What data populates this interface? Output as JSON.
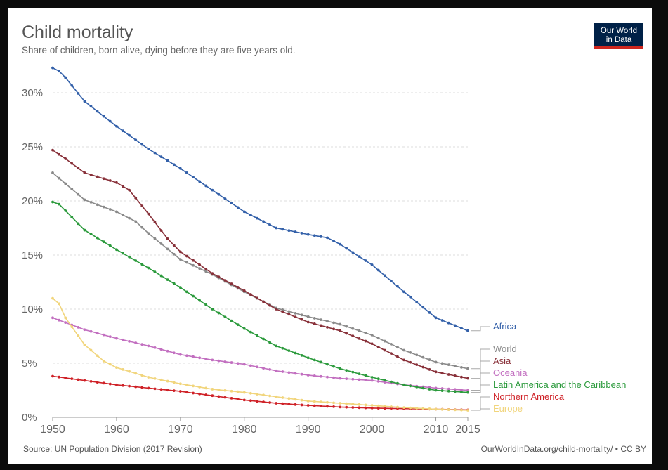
{
  "header": {
    "title": "Child mortality",
    "subtitle": "Share of children, born alive, dying before they are five years old."
  },
  "logo": {
    "line1": "Our World",
    "line2": "in Data",
    "bg_color": "#002147",
    "accent_color": "#ce261e"
  },
  "footer": {
    "source": "Source: UN Population Division (2017 Revision)",
    "url": "OurWorldInData.org/child-mortality/",
    "license": "CC BY"
  },
  "chart_data": {
    "type": "line",
    "xlim": [
      1950,
      2015
    ],
    "ylim": [
      0,
      32
    ],
    "x_ticks": [
      1950,
      1960,
      1970,
      1980,
      1990,
      2000,
      2010,
      2015
    ],
    "x_tick_labels": [
      "1950",
      "1960",
      "1970",
      "1980",
      "1990",
      "2000",
      "2010",
      "2015"
    ],
    "y_ticks": [
      0,
      5,
      10,
      15,
      20,
      25,
      30
    ],
    "y_tick_labels": [
      "0%",
      "5%",
      "10%",
      "15%",
      "20%",
      "25%",
      "30%"
    ],
    "grid": "horizontal-dashed",
    "legend": "end-labels-right",
    "series": [
      {
        "name": "Africa",
        "color": "#3360a9",
        "points": [
          [
            1950,
            32.3
          ],
          [
            1951,
            32.0
          ],
          [
            1952,
            31.4
          ],
          [
            1955,
            29.2
          ],
          [
            1960,
            26.9
          ],
          [
            1965,
            24.8
          ],
          [
            1970,
            23.0
          ],
          [
            1975,
            21.0
          ],
          [
            1980,
            19.0
          ],
          [
            1985,
            17.5
          ],
          [
            1990,
            16.9
          ],
          [
            1993,
            16.6
          ],
          [
            1995,
            16.0
          ],
          [
            2000,
            14.1
          ],
          [
            2005,
            11.6
          ],
          [
            2010,
            9.2
          ],
          [
            2015,
            8.0
          ]
        ]
      },
      {
        "name": "World",
        "color": "#8a8a8a",
        "points": [
          [
            1950,
            22.6
          ],
          [
            1952,
            21.6
          ],
          [
            1955,
            20.1
          ],
          [
            1960,
            19.0
          ],
          [
            1963,
            18.1
          ],
          [
            1965,
            17.0
          ],
          [
            1970,
            14.6
          ],
          [
            1975,
            13.2
          ],
          [
            1980,
            11.6
          ],
          [
            1985,
            10.1
          ],
          [
            1990,
            9.3
          ],
          [
            1995,
            8.6
          ],
          [
            2000,
            7.6
          ],
          [
            2005,
            6.2
          ],
          [
            2010,
            5.1
          ],
          [
            2015,
            4.5
          ]
        ]
      },
      {
        "name": "Asia",
        "color": "#883039",
        "points": [
          [
            1950,
            24.7
          ],
          [
            1952,
            23.9
          ],
          [
            1955,
            22.6
          ],
          [
            1960,
            21.7
          ],
          [
            1962,
            21.0
          ],
          [
            1965,
            18.8
          ],
          [
            1968,
            16.5
          ],
          [
            1970,
            15.3
          ],
          [
            1975,
            13.3
          ],
          [
            1980,
            11.7
          ],
          [
            1985,
            10.0
          ],
          [
            1990,
            8.8
          ],
          [
            1995,
            8.0
          ],
          [
            2000,
            6.8
          ],
          [
            2005,
            5.3
          ],
          [
            2010,
            4.2
          ],
          [
            2015,
            3.6
          ]
        ]
      },
      {
        "name": "Oceania",
        "color": "#c26fc0",
        "points": [
          [
            1950,
            9.2
          ],
          [
            1955,
            8.1
          ],
          [
            1960,
            7.3
          ],
          [
            1965,
            6.6
          ],
          [
            1970,
            5.8
          ],
          [
            1975,
            5.3
          ],
          [
            1980,
            4.9
          ],
          [
            1985,
            4.3
          ],
          [
            1990,
            3.9
          ],
          [
            1995,
            3.6
          ],
          [
            2000,
            3.4
          ],
          [
            2005,
            3.0
          ],
          [
            2010,
            2.7
          ],
          [
            2015,
            2.5
          ]
        ]
      },
      {
        "name": "Latin America and the Caribbean",
        "color": "#2b9a3c",
        "points": [
          [
            1950,
            19.9
          ],
          [
            1951,
            19.7
          ],
          [
            1955,
            17.3
          ],
          [
            1960,
            15.5
          ],
          [
            1965,
            13.8
          ],
          [
            1970,
            12.0
          ],
          [
            1975,
            10.0
          ],
          [
            1980,
            8.2
          ],
          [
            1985,
            6.6
          ],
          [
            1990,
            5.5
          ],
          [
            1995,
            4.5
          ],
          [
            2000,
            3.7
          ],
          [
            2005,
            3.0
          ],
          [
            2010,
            2.5
          ],
          [
            2015,
            2.3
          ]
        ]
      },
      {
        "name": "Northern America",
        "color": "#cf2127",
        "points": [
          [
            1950,
            3.8
          ],
          [
            1955,
            3.4
          ],
          [
            1960,
            3.0
          ],
          [
            1965,
            2.7
          ],
          [
            1970,
            2.4
          ],
          [
            1975,
            2.0
          ],
          [
            1980,
            1.6
          ],
          [
            1985,
            1.3
          ],
          [
            1990,
            1.1
          ],
          [
            1995,
            0.95
          ],
          [
            2000,
            0.85
          ],
          [
            2005,
            0.8
          ],
          [
            2010,
            0.75
          ],
          [
            2015,
            0.68
          ]
        ]
      },
      {
        "name": "Europe",
        "color": "#f1d57c",
        "points": [
          [
            1950,
            11.0
          ],
          [
            1951,
            10.5
          ],
          [
            1952,
            9.2
          ],
          [
            1955,
            6.7
          ],
          [
            1958,
            5.2
          ],
          [
            1960,
            4.6
          ],
          [
            1965,
            3.7
          ],
          [
            1970,
            3.1
          ],
          [
            1975,
            2.6
          ],
          [
            1980,
            2.3
          ],
          [
            1985,
            1.9
          ],
          [
            1990,
            1.5
          ],
          [
            1995,
            1.3
          ],
          [
            2000,
            1.1
          ],
          [
            2005,
            0.9
          ],
          [
            2010,
            0.75
          ],
          [
            2015,
            0.65
          ]
        ]
      }
    ]
  }
}
